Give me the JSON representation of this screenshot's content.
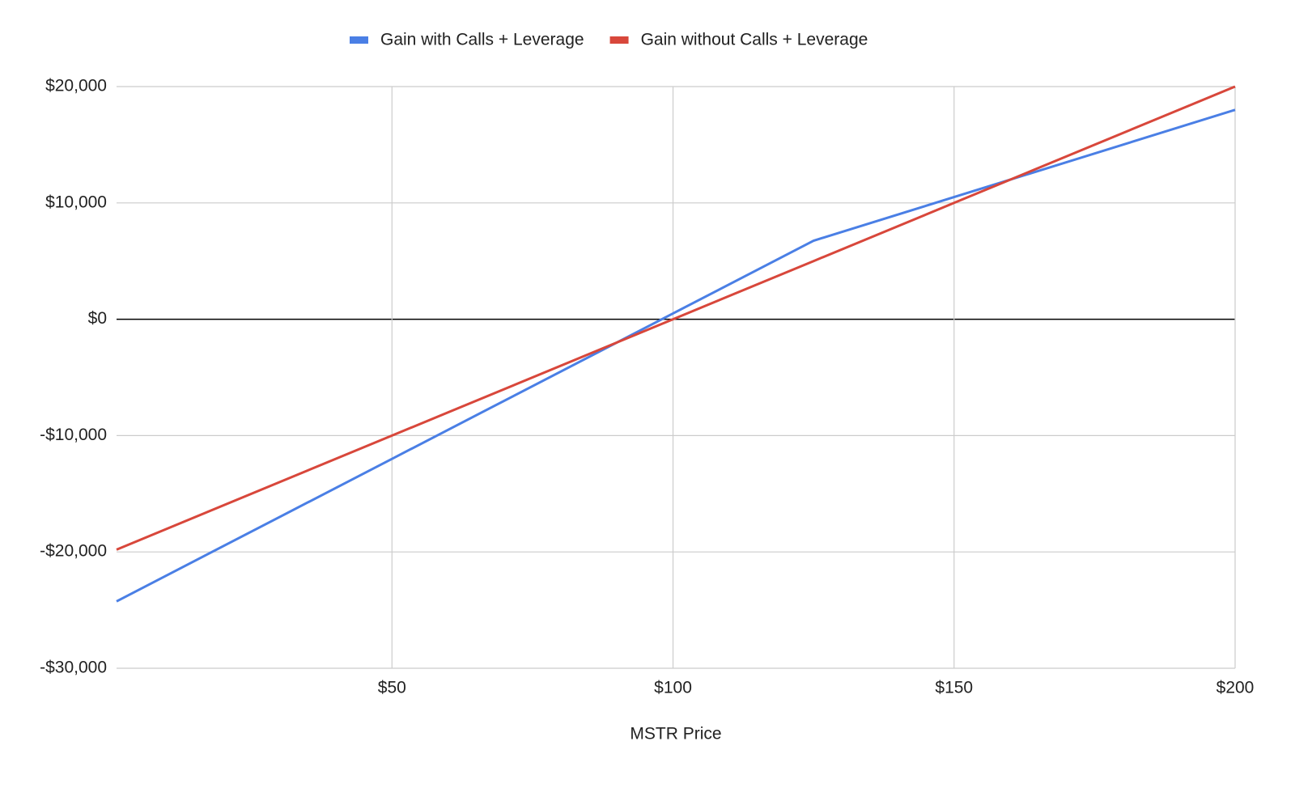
{
  "chart_data": {
    "type": "line",
    "x_label": "MSTR Price",
    "x": [
      1,
      50,
      100,
      125,
      150,
      200
    ],
    "series": [
      {
        "name": "Gain with Calls + Leverage",
        "color": "#4a7fe5",
        "values": [
          -24250,
          -12000,
          500,
          6750,
          10500,
          18000
        ]
      },
      {
        "name": "Gain without Calls + Leverage",
        "color": "#d8473b",
        "values": [
          -19800,
          -10000,
          0,
          5000,
          10000,
          20000
        ]
      }
    ],
    "xlim": [
      1,
      200
    ],
    "xticks": [
      {
        "value": 50,
        "label": "$50"
      },
      {
        "value": 100,
        "label": "$100"
      },
      {
        "value": 150,
        "label": "$150"
      },
      {
        "value": 200,
        "label": "$200"
      }
    ],
    "ylim": [
      -30000,
      20000
    ],
    "yticks": [
      {
        "value": -30000,
        "label": "-$30,000"
      },
      {
        "value": -20000,
        "label": "-$20,000"
      },
      {
        "value": -10000,
        "label": "-$10,000"
      },
      {
        "value": 0,
        "label": "$0"
      },
      {
        "value": 10000,
        "label": "$10,000"
      },
      {
        "value": 20000,
        "label": "$20,000"
      }
    ],
    "grid": true,
    "legend": "top"
  }
}
